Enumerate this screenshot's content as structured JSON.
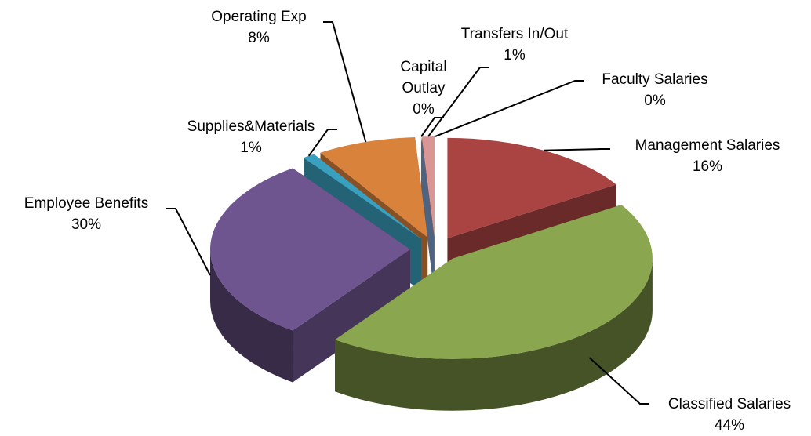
{
  "chart_data": {
    "type": "pie",
    "categories": [
      "Faculty Salaries",
      "Management Salaries",
      "Classified Salaries",
      "Employee Benefits",
      "Supplies&Materials",
      "Operating Exp",
      "Capital Outlay",
      "Transfers In/Out"
    ],
    "values": [
      0,
      16,
      44,
      30,
      1,
      8,
      0,
      1
    ],
    "value_labels": [
      "0%",
      "16%",
      "44%",
      "30%",
      "1%",
      "8%",
      "0%",
      "1%"
    ],
    "colors": [
      "#4a7ebb",
      "#a94442",
      "#8aa64e",
      "#6f5590",
      "#3aa0bf",
      "#d9823b",
      "#7e9fcf",
      "#d99694"
    ]
  }
}
